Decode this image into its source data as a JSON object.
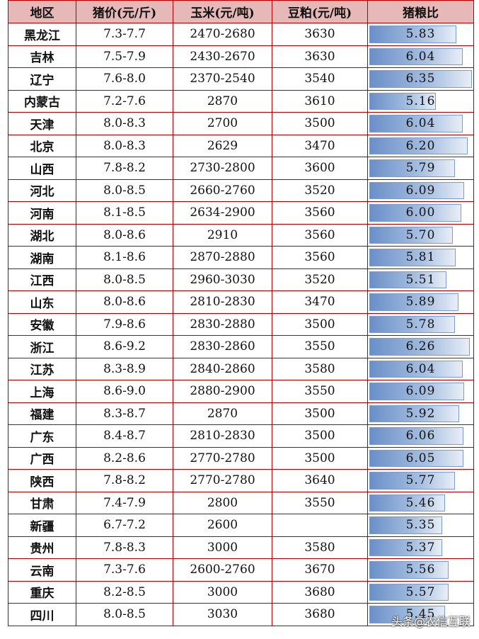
{
  "headers": [
    "地区",
    "猪价(元/斤)",
    "玉米(元/吨)",
    "豆粕(元/吨)",
    "猪粮比"
  ],
  "rows": [
    {
      "region": "黑龙江",
      "pig_price": "7.3-7.7",
      "corn": "2470-2680",
      "soymeal": "3630",
      "ratio": "5.83"
    },
    {
      "region": "吉林",
      "pig_price": "7.5-7.9",
      "corn": "2430-2670",
      "soymeal": "3630",
      "ratio": "6.04"
    },
    {
      "region": "辽宁",
      "pig_price": "7.6-8.0",
      "corn": "2370-2540",
      "soymeal": "3540",
      "ratio": "6.35"
    },
    {
      "region": "内蒙古",
      "pig_price": "7.2-7.6",
      "corn": "2870",
      "soymeal": "3610",
      "ratio": "5.16"
    },
    {
      "region": "天津",
      "pig_price": "8.0-8.3",
      "corn": "2700",
      "soymeal": "3500",
      "ratio": "6.04"
    },
    {
      "region": "北京",
      "pig_price": "8.0-8.3",
      "corn": "2629",
      "soymeal": "3470",
      "ratio": "6.20"
    },
    {
      "region": "山西",
      "pig_price": "7.8-8.2",
      "corn": "2730-2800",
      "soymeal": "3600",
      "ratio": "5.79"
    },
    {
      "region": "河北",
      "pig_price": "8.0-8.5",
      "corn": "2660-2760",
      "soymeal": "3520",
      "ratio": "6.09"
    },
    {
      "region": "河南",
      "pig_price": "8.1-8.5",
      "corn": "2634-2900",
      "soymeal": "3560",
      "ratio": "6.00"
    },
    {
      "region": "湖北",
      "pig_price": "8.0-8.6",
      "corn": "2910",
      "soymeal": "3560",
      "ratio": "5.70"
    },
    {
      "region": "湖南",
      "pig_price": "8.1-8.6",
      "corn": "2870-2880",
      "soymeal": "3560",
      "ratio": "5.81"
    },
    {
      "region": "江西",
      "pig_price": "8.0-8.5",
      "corn": "2960-3030",
      "soymeal": "3520",
      "ratio": "5.51"
    },
    {
      "region": "山东",
      "pig_price": "8.0-8.6",
      "corn": "2810-2830",
      "soymeal": "3470",
      "ratio": "5.89"
    },
    {
      "region": "安徽",
      "pig_price": "7.9-8.6",
      "corn": "2830-2880",
      "soymeal": "3500",
      "ratio": "5.78"
    },
    {
      "region": "浙江",
      "pig_price": "8.6-9.2",
      "corn": "2830-2860",
      "soymeal": "3550",
      "ratio": "6.26"
    },
    {
      "region": "江苏",
      "pig_price": "8.3-8.9",
      "corn": "2840-2860",
      "soymeal": "3580",
      "ratio": "6.04"
    },
    {
      "region": "上海",
      "pig_price": "8.6-9.0",
      "corn": "2880-2900",
      "soymeal": "3550",
      "ratio": "6.09"
    },
    {
      "region": "福建",
      "pig_price": "8.3-8.7",
      "corn": "2870",
      "soymeal": "3500",
      "ratio": "5.92"
    },
    {
      "region": "广东",
      "pig_price": "8.4-8.7",
      "corn": "2810-2830",
      "soymeal": "3500",
      "ratio": "6.06"
    },
    {
      "region": "广西",
      "pig_price": "8.2-8.6",
      "corn": "2770-2780",
      "soymeal": "3500",
      "ratio": "6.05"
    },
    {
      "region": "陕西",
      "pig_price": "7.8-8.2",
      "corn": "2770-2780",
      "soymeal": "3640",
      "ratio": "5.77"
    },
    {
      "region": "甘肃",
      "pig_price": "7.4-7.9",
      "corn": "2800",
      "soymeal": "3550",
      "ratio": "5.46"
    },
    {
      "region": "新疆",
      "pig_price": "6.7-7.2",
      "corn": "2600",
      "soymeal": "",
      "ratio": "5.35"
    },
    {
      "region": "贵州",
      "pig_price": "7.8-8.3",
      "corn": "3000",
      "soymeal": "3580",
      "ratio": "5.37"
    },
    {
      "region": "云南",
      "pig_price": "7.3-7.6",
      "corn": "2600-2760",
      "soymeal": "3670",
      "ratio": "5.56"
    },
    {
      "region": "重庆",
      "pig_price": "8.2-8.5",
      "corn": "3000",
      "soymeal": "3680",
      "ratio": "5.57"
    },
    {
      "region": "四川",
      "pig_price": "8.0-8.5",
      "corn": "3030",
      "soymeal": "3680",
      "ratio": "5.45"
    }
  ],
  "colors": {
    "header_bg": "#e6b8b7",
    "border": "#b00000",
    "bar_start": "#6a8fc8",
    "bar_end": "#e8eef7"
  },
  "watermark": "头条@农信互联"
}
